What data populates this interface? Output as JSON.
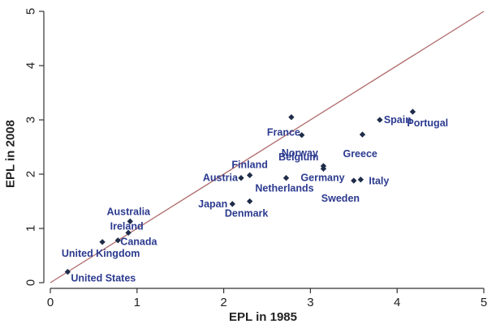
{
  "chart_data": {
    "type": "scatter",
    "xlabel": "EPL in 1985",
    "ylabel": "EPL in 2008",
    "xlim": [
      0,
      5
    ],
    "ylim": [
      0,
      5
    ],
    "x_ticks": [
      "0",
      "1",
      "2",
      "3",
      "4",
      "5"
    ],
    "y_ticks": [
      "0",
      "1",
      "2",
      "3",
      "4",
      "5"
    ],
    "grid": false,
    "reference_line": {
      "from": [
        0,
        0
      ],
      "to": [
        5,
        5
      ],
      "color": "#b06a6a"
    },
    "marker_color": "#1f2d4a",
    "label_color": "#2b3a8f",
    "points": [
      {
        "name": "United States",
        "x": 0.2,
        "y": 0.2
      },
      {
        "name": "United Kingdom",
        "x": 0.6,
        "y": 0.75
      },
      {
        "name": "Canada",
        "x": 0.78,
        "y": 0.78
      },
      {
        "name": "Ireland",
        "x": 0.9,
        "y": 0.92
      },
      {
        "name": "Australia",
        "x": 0.92,
        "y": 1.13
      },
      {
        "name": "Japan",
        "x": 2.1,
        "y": 1.45
      },
      {
        "name": "Denmark",
        "x": 2.3,
        "y": 1.5
      },
      {
        "name": "Austria",
        "x": 2.2,
        "y": 1.93
      },
      {
        "name": "Finland",
        "x": 2.3,
        "y": 1.98
      },
      {
        "name": "Netherlands",
        "x": 2.72,
        "y": 1.93
      },
      {
        "name": "Belgium",
        "x": 3.15,
        "y": 2.15
      },
      {
        "name": "Germany",
        "x": 3.15,
        "y": 2.1
      },
      {
        "name": "France",
        "x": 2.78,
        "y": 3.05
      },
      {
        "name": "Norway",
        "x": 2.9,
        "y": 2.72
      },
      {
        "name": "Sweden",
        "x": 3.5,
        "y": 1.88
      },
      {
        "name": "Italy",
        "x": 3.58,
        "y": 1.9
      },
      {
        "name": "Greece",
        "x": 3.6,
        "y": 2.73
      },
      {
        "name": "Spain",
        "x": 3.8,
        "y": 3.0
      },
      {
        "name": "Portugal",
        "x": 4.18,
        "y": 3.15
      }
    ]
  }
}
